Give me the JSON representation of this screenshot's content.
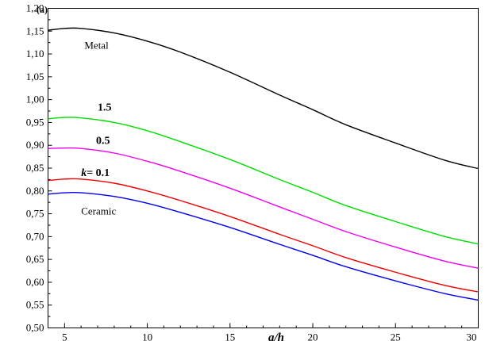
{
  "chart_data": {
    "type": "line",
    "panel_label": "(a)",
    "xlabel": "a/h",
    "ylabel": "",
    "xlim": [
      4,
      30
    ],
    "ylim": [
      0.5,
      1.2
    ],
    "x_ticks": [
      5,
      10,
      15,
      20,
      25,
      30
    ],
    "x_tick_labels": [
      "5",
      "10",
      "15",
      "20",
      "25",
      "30"
    ],
    "y_ticks": [
      0.5,
      0.55,
      0.6,
      0.65,
      0.7,
      0.75,
      0.8,
      0.85,
      0.9,
      0.95,
      1.0,
      1.05,
      1.1,
      1.15,
      1.2
    ],
    "y_tick_labels": [
      "0,50",
      "0,55",
      "0,60",
      "0,65",
      "0,70",
      "0,75",
      "0,80",
      "0,85",
      "0,90",
      "0,95",
      "1,00",
      "1,05",
      "1,10",
      "1,15",
      "1,20"
    ],
    "grid": false,
    "series": [
      {
        "name": "Metal",
        "color": "#000000",
        "x": [
          4,
          5,
          6,
          8,
          10,
          12,
          15,
          18,
          20,
          22,
          25,
          28,
          30
        ],
        "y": [
          1.152,
          1.156,
          1.156,
          1.146,
          1.128,
          1.104,
          1.06,
          1.01,
          0.978,
          0.945,
          0.905,
          0.867,
          0.849
        ]
      },
      {
        "name": "1.5",
        "color": "#00dd00",
        "x": [
          4,
          5,
          6,
          8,
          10,
          12,
          15,
          18,
          20,
          22,
          25,
          28,
          30
        ],
        "y": [
          0.958,
          0.961,
          0.96,
          0.95,
          0.932,
          0.908,
          0.869,
          0.825,
          0.797,
          0.768,
          0.733,
          0.7,
          0.684
        ]
      },
      {
        "name": "0.5",
        "color": "#ee00ee",
        "x": [
          4,
          5,
          6,
          8,
          10,
          12,
          15,
          18,
          20,
          22,
          25,
          28,
          30
        ],
        "y": [
          0.893,
          0.894,
          0.893,
          0.883,
          0.865,
          0.843,
          0.806,
          0.765,
          0.738,
          0.711,
          0.677,
          0.646,
          0.631
        ]
      },
      {
        "name": "k= 0.1",
        "color": "#ee0000",
        "x": [
          4,
          5,
          6,
          8,
          10,
          12,
          15,
          18,
          20,
          22,
          25,
          28,
          30
        ],
        "y": [
          0.823,
          0.826,
          0.826,
          0.817,
          0.8,
          0.779,
          0.744,
          0.705,
          0.68,
          0.654,
          0.622,
          0.593,
          0.579
        ]
      },
      {
        "name": "Ceramic",
        "color": "#0000ee",
        "x": [
          4,
          5,
          6,
          8,
          10,
          12,
          15,
          18,
          20,
          22,
          25,
          28,
          30
        ],
        "y": [
          0.793,
          0.796,
          0.796,
          0.788,
          0.773,
          0.753,
          0.72,
          0.683,
          0.659,
          0.634,
          0.603,
          0.575,
          0.561
        ]
      }
    ],
    "annotations": [
      {
        "text": "Metal",
        "x": 6.2,
        "y": 1.118,
        "style": "normal"
      },
      {
        "text": "1.5",
        "x": 7.0,
        "y": 0.983,
        "style": "bold"
      },
      {
        "text": "0.5",
        "x": 6.9,
        "y": 0.91,
        "style": "bold"
      },
      {
        "text": "k= 0.1",
        "x": 6.0,
        "y": 0.84,
        "style": "bold"
      },
      {
        "text": "Ceramic",
        "x": 6.0,
        "y": 0.755,
        "style": "normal"
      }
    ]
  }
}
